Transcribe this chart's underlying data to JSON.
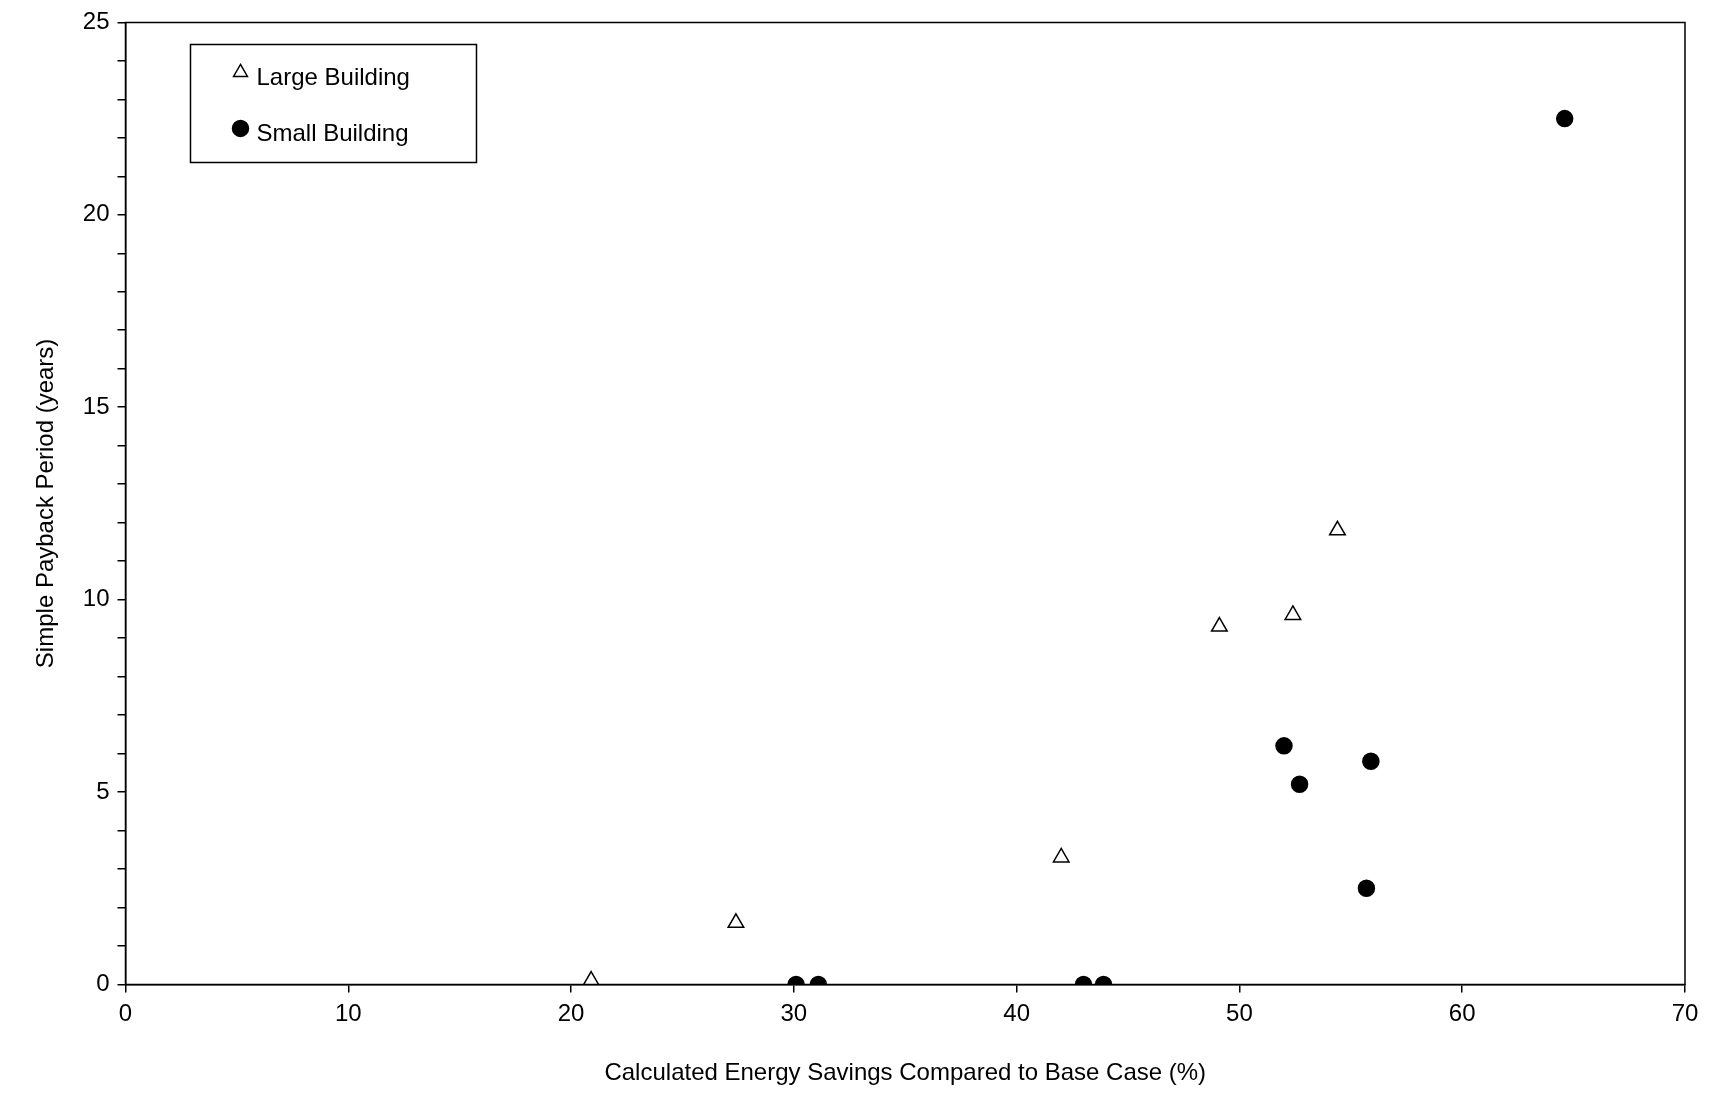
{
  "chart_data": {
    "type": "scatter",
    "xlabel": "Calculated Energy Savings Compared to Base Case (%)",
    "ylabel": "Simple Payback Period (years)",
    "xlim": [
      0,
      70
    ],
    "xticks": [
      0,
      10,
      20,
      30,
      40,
      50,
      60,
      70
    ],
    "ylim": [
      0,
      25
    ],
    "yticks": [
      0,
      {
        "value": 1,
        "label": null
      },
      {
        "value": 2,
        "label": null
      },
      {
        "value": 3,
        "label": null
      },
      {
        "value": 4,
        "label": null
      },
      5,
      {
        "value": 6,
        "label": null
      },
      {
        "value": 7,
        "label": null
      },
      {
        "value": 8,
        "label": null
      },
      {
        "value": 9,
        "label": null
      },
      10,
      {
        "value": 11,
        "label": null
      },
      {
        "value": 12,
        "label": null
      },
      {
        "value": 13,
        "label": null
      },
      {
        "value": 14,
        "label": null
      },
      15,
      {
        "value": 16,
        "label": null
      },
      {
        "value": 17,
        "label": null
      },
      {
        "value": 18,
        "label": null
      },
      {
        "value": 19,
        "label": null
      },
      20,
      {
        "value": 21,
        "label": null
      },
      {
        "value": 22,
        "label": null
      },
      {
        "value": 23,
        "label": null
      },
      {
        "value": 24,
        "label": null
      },
      25
    ],
    "grid": false,
    "legend": "top left",
    "series": [
      {
        "name": "Large Building",
        "color": "#000000",
        "marker": "triangle",
        "x": [
          20.9,
          27.4,
          42.0,
          49.1,
          52.4,
          54.4
        ],
        "values": [
          0.1,
          1.6,
          3.3,
          9.3,
          9.6,
          11.8
        ]
      },
      {
        "name": "Small Building",
        "color": "#000000",
        "marker": "circle",
        "x": [
          30.1,
          31.1,
          43.0,
          43.9,
          52.0,
          52.7,
          55.9,
          55.7,
          64.6
        ],
        "values": [
          0,
          0,
          0,
          0,
          6.2,
          5.2,
          5.8,
          2.5,
          22.5
        ]
      }
    ]
  }
}
